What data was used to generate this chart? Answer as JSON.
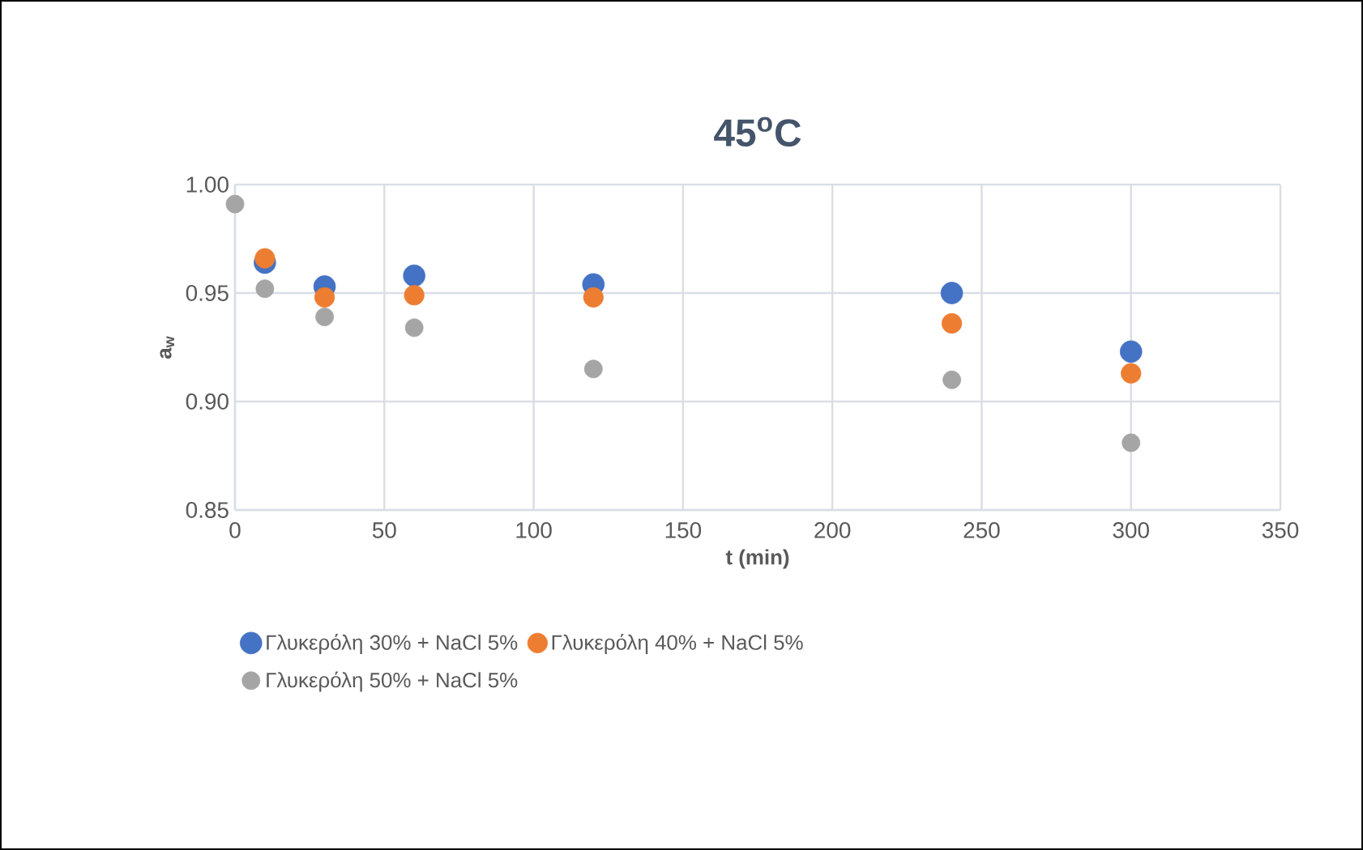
{
  "chart_data": {
    "type": "scatter",
    "title": "45$^{o}$C",
    "xlabel": "t (min)",
    "ylabel": "a$_{w}$",
    "x": [
      0,
      10,
      30,
      60,
      120,
      240,
      300
    ],
    "series": [
      {
        "name": "Γλυκερόλη 30% + NaCl 5%",
        "color": "#4472c4",
        "values": [
          null,
          0.964,
          0.953,
          0.958,
          0.954,
          0.95,
          0.923
        ]
      },
      {
        "name": "Γλυκερόλη 40% + NaCl 5%",
        "color": "#ed7d31",
        "values": [
          null,
          0.966,
          0.948,
          0.949,
          0.948,
          0.936,
          0.913
        ]
      },
      {
        "name": "Γλυκερόλη 50% + NaCl 5%",
        "color": "#a5a5a5",
        "values": [
          0.991,
          0.952,
          0.939,
          0.934,
          0.915,
          0.91,
          0.881
        ]
      }
    ],
    "xlim": [
      0,
      350
    ],
    "xticks": [
      0,
      50,
      100,
      150,
      200,
      250,
      300,
      350
    ],
    "ylim": [
      0.85,
      1.0
    ],
    "yticks": [
      {
        "value": 0.85,
        "label": "0.85"
      },
      {
        "value": 0.9,
        "label": "0.90"
      },
      {
        "value": 0.95,
        "label": "0.95"
      },
      {
        "value": 1.0,
        "label": "1.00"
      }
    ],
    "grid": true,
    "legend": "bottom",
    "marker": "circle"
  }
}
